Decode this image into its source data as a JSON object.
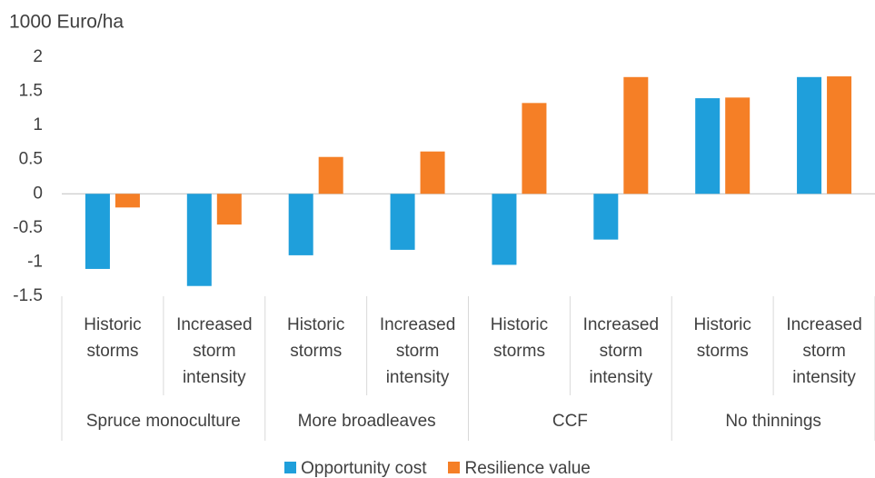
{
  "chart_data": {
    "type": "bar",
    "y_axis_label": "1000 Euro/ha",
    "categories": [
      "Historic storms",
      "Increased storm intensity",
      "Historic storms",
      "Increased storm intensity",
      "Historic storms",
      "Increased storm intensity",
      "Historic storms",
      "Increased storm intensity"
    ],
    "groups": [
      "Spruce monoculture",
      "More broadleaves",
      "CCF",
      "No thinnings"
    ],
    "series": [
      {
        "name": "Opportunity cost",
        "color": "#1f9fdb",
        "values": [
          -1.1,
          -1.35,
          -0.9,
          -0.82,
          -1.04,
          -0.67,
          1.4,
          1.71
        ]
      },
      {
        "name": "Resilience value",
        "color": "#f57f26",
        "values": [
          -0.2,
          -0.45,
          0.54,
          0.62,
          1.33,
          1.71,
          1.41,
          1.72
        ]
      }
    ],
    "ylim": [
      -1.5,
      2
    ],
    "yticks": [
      -1.5,
      -1,
      -0.5,
      0,
      0.5,
      1,
      1.5,
      2
    ],
    "grid": false,
    "legend": "bottom"
  }
}
